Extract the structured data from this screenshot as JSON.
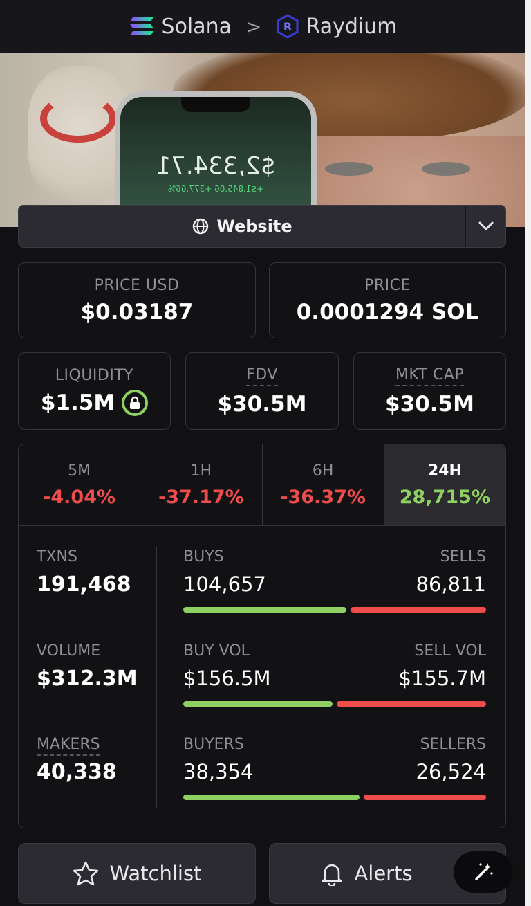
{
  "breadcrumb": {
    "chain": "Solana",
    "separator": ">",
    "dex": "Raydium"
  },
  "banner": {
    "phone_amount": "$2,334.71",
    "phone_sub": "+$1,845.06 +377.66%"
  },
  "website": {
    "label": "Website",
    "icon": "globe-icon",
    "dropdown_icon": "chevron-down-icon"
  },
  "price": {
    "usd_label": "PRICE USD",
    "usd_value": "$0.03187",
    "sol_label": "PRICE",
    "sol_value": "0.0001294 SOL"
  },
  "metrics": {
    "liquidity_label": "LIQUIDITY",
    "liquidity_value": "$1.5M",
    "fdv_label": "FDV",
    "fdv_value": "$30.5M",
    "mktcap_label": "MKT CAP",
    "mktcap_value": "$30.5M"
  },
  "tabs": [
    {
      "label": "5M",
      "value": "-4.04%"
    },
    {
      "label": "1H",
      "value": "-37.17%"
    },
    {
      "label": "6H",
      "value": "-36.37%"
    },
    {
      "label": "24H",
      "value": "28,715%"
    }
  ],
  "stats": {
    "txns_label": "TXNS",
    "txns_value": "191,468",
    "volume_label": "VOLUME",
    "volume_value": "$312.3M",
    "makers_label": "MAKERS",
    "makers_value": "40,338",
    "buys_label": "BUYS",
    "buys_value": "104,657",
    "sells_label": "SELLS",
    "sells_value": "86,811",
    "buyvol_label": "BUY VOL",
    "buyvol_value": "$156.5M",
    "sellvol_label": "SELL VOL",
    "sellvol_value": "$155.7M",
    "buyers_label": "BUYERS",
    "buyers_value": "38,354",
    "sellers_label": "SELLERS",
    "sellers_value": "26,524"
  },
  "ratios": {
    "buys": 0.547,
    "buyvol": 0.501,
    "buyers": 0.591
  },
  "actions": {
    "watchlist": "Watchlist",
    "alerts": "Alerts"
  },
  "colors": {
    "positive": "#8ed162",
    "negative": "#ef4c4c"
  }
}
